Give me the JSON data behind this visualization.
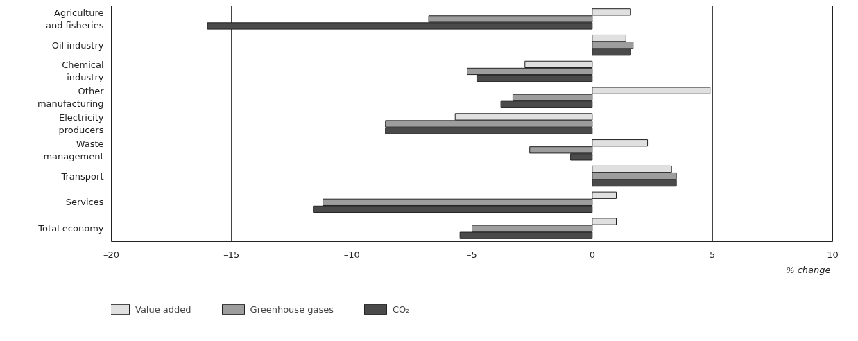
{
  "chart_data": {
    "type": "bar",
    "orientation": "horizontal",
    "xlabel": "% change",
    "categories": [
      "Agriculture and fisheries",
      "Oil industry",
      "Chemical industry",
      "Other manufacturing",
      "Electricity producers",
      "Waste management",
      "Transport",
      "Services",
      "Total economy"
    ],
    "series": [
      {
        "name": "Value added",
        "color": "#e0e0e0",
        "values": [
          1.6,
          1.4,
          -2.8,
          4.9,
          -5.7,
          2.3,
          3.3,
          1.0,
          1.0
        ]
      },
      {
        "name": "Greenhouse gases",
        "color": "#9d9d9d",
        "values": [
          -6.8,
          1.7,
          -5.2,
          -3.3,
          -8.6,
          -2.6,
          3.5,
          -11.2,
          -5.0
        ]
      },
      {
        "name": "CO₂",
        "color": "#4a4a4a",
        "values": [
          -16.0,
          1.6,
          -4.8,
          -3.8,
          -8.6,
          -0.9,
          3.5,
          -11.6,
          -5.5
        ]
      }
    ],
    "xlim": [
      -20,
      10
    ],
    "xticks": [
      {
        "value": -20,
        "label": "–20"
      },
      {
        "value": -15,
        "label": "–15"
      },
      {
        "value": -10,
        "label": "–10"
      },
      {
        "value": -5,
        "label": "–5"
      },
      0,
      5,
      10
    ],
    "grid": "x",
    "legend": "bottom"
  }
}
